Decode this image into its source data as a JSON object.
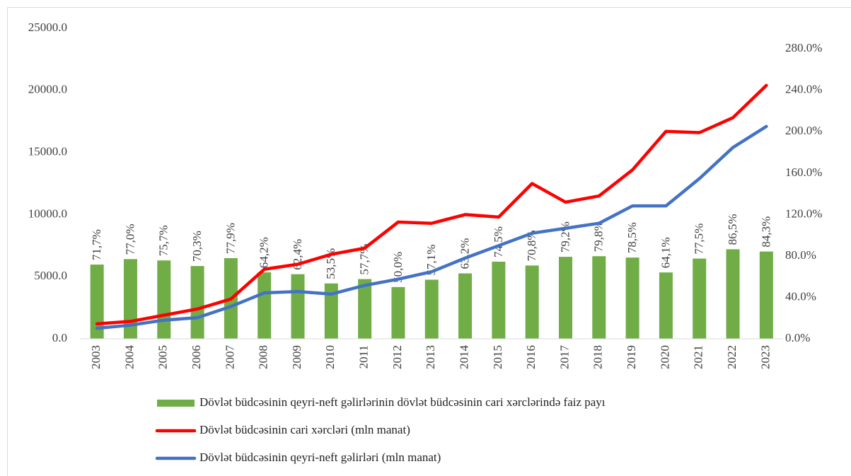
{
  "chart_data": {
    "type": "combo",
    "categories": [
      "2003",
      "2004",
      "2005",
      "2006",
      "2007",
      "2008",
      "2009",
      "2010",
      "2011",
      "2012",
      "2013",
      "2014",
      "2015",
      "2016",
      "2017",
      "2018",
      "2019",
      "2020",
      "2021",
      "2022",
      "2023"
    ],
    "series": [
      {
        "name": "Dövlət büdcəsinin qeyri-neft gəlirlərinin dövlət büdcəsinin cari xərclərində faiz payı",
        "type": "bar",
        "axis": "y2",
        "color": "#70ad47",
        "values": [
          71.7,
          77.0,
          75.7,
          70.3,
          77.9,
          64.2,
          62.4,
          53.5,
          57.7,
          50.0,
          57.1,
          63.2,
          74.5,
          70.8,
          79.2,
          79.8,
          78.5,
          64.1,
          77.5,
          86.5,
          84.3
        ],
        "value_labels": [
          "71,7%",
          "77,0%",
          "75,7%",
          "70,3%",
          "77,9%",
          "64,2%",
          "62,4%",
          "53,5%",
          "57,7%",
          "50,0%",
          "57,1%",
          "63,2%",
          "74,5%",
          "70,8%",
          "79,2%",
          "79,8%",
          "78,5%",
          "64,1%",
          "77,5%",
          "86,5%",
          "84,3%"
        ]
      },
      {
        "name": "Dövlət büdcəsinin cari xərcləri (mln manat)",
        "type": "line",
        "axis": "y",
        "color": "#ff0000",
        "values": [
          1200,
          1400,
          1900,
          2400,
          3200,
          5600,
          6000,
          6800,
          7300,
          9400,
          9300,
          10000,
          9800,
          12500,
          11000,
          11500,
          13600,
          16700,
          16600,
          17800,
          20400
        ]
      },
      {
        "name": "Dövlət büdcəsinin qeyri-neft gəlirləri (mln manat)",
        "type": "line",
        "axis": "y",
        "color": "#4472c4",
        "values": [
          850,
          1100,
          1500,
          1700,
          2600,
          3700,
          3800,
          3600,
          4300,
          4800,
          5400,
          6500,
          7500,
          8500,
          8900,
          9300,
          10700,
          10700,
          12900,
          15400,
          17100
        ]
      }
    ],
    "ylim": [
      0,
      25000
    ],
    "yticks": [
      {
        "value": 0,
        "label": "0.0"
      },
      {
        "value": 5000,
        "label": "5000.0"
      },
      {
        "value": 10000,
        "label": "10000.0"
      },
      {
        "value": 15000,
        "label": "15000.0"
      },
      {
        "value": 20000,
        "label": "20000.0"
      },
      {
        "value": 25000,
        "label": "25000.0"
      }
    ],
    "y2lim": [
      0,
      300
    ],
    "y2ticks": [
      {
        "value": 0,
        "label": "0.0%"
      },
      {
        "value": 40,
        "label": "40.0%"
      },
      {
        "value": 80,
        "label": "80.0%"
      },
      {
        "value": 120,
        "label": "120.0%"
      },
      {
        "value": 160,
        "label": "160.0%"
      },
      {
        "value": 200,
        "label": "200.0%"
      },
      {
        "value": 240,
        "label": "240.0%"
      },
      {
        "value": 280,
        "label": "280.0%"
      }
    ],
    "grid": false,
    "legend": "bottom"
  }
}
